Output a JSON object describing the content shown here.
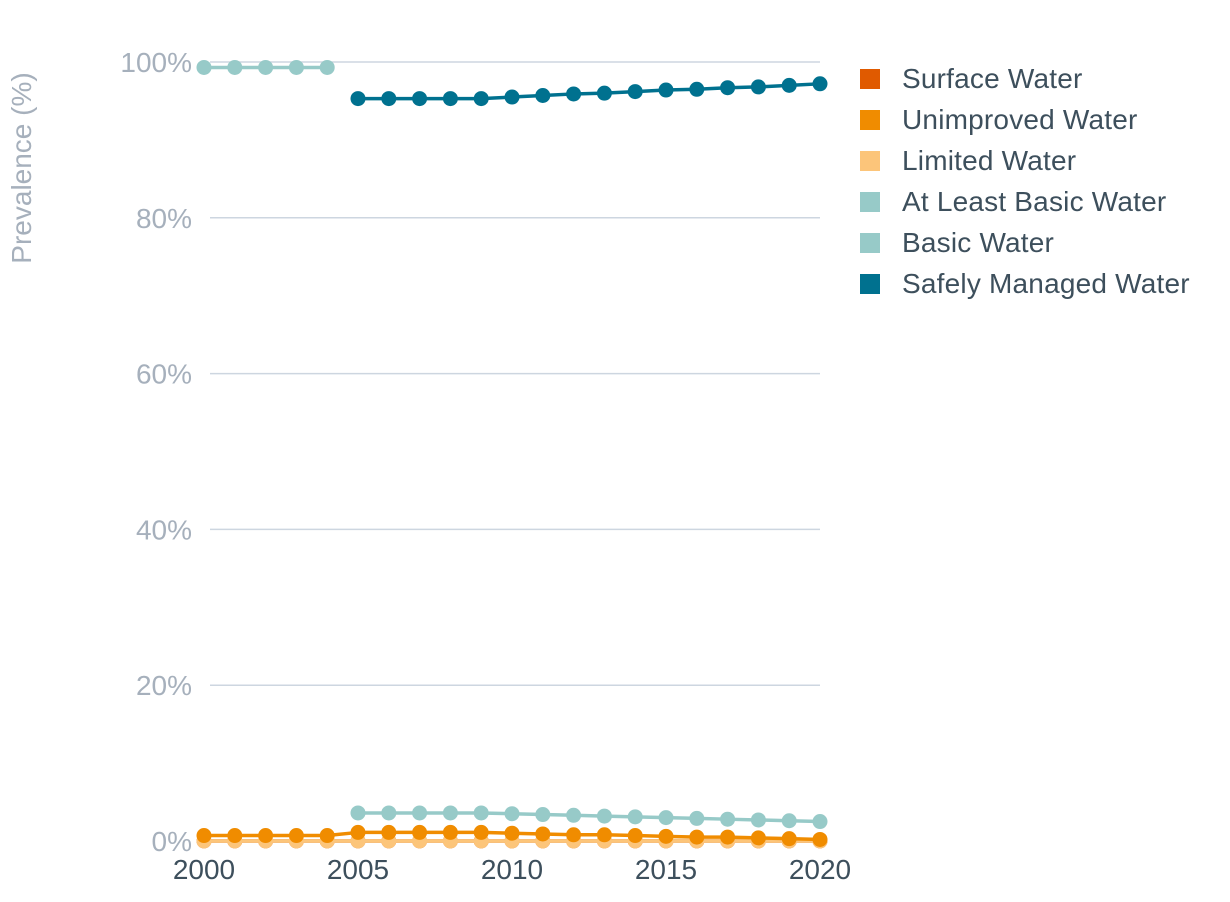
{
  "chart_data": {
    "type": "line",
    "ylabel": "Prevalence (%)",
    "xlabel": "",
    "x": [
      2000,
      2001,
      2002,
      2003,
      2004,
      2005,
      2006,
      2007,
      2008,
      2009,
      2010,
      2011,
      2012,
      2013,
      2014,
      2015,
      2016,
      2017,
      2018,
      2019,
      2020
    ],
    "xlim": [
      2000,
      2020
    ],
    "ylim": [
      0,
      100
    ],
    "x_ticks": [
      "2000",
      "2005",
      "2010",
      "2015",
      "2020"
    ],
    "y_ticks": [
      "0%",
      "20%",
      "40%",
      "60%",
      "80%",
      "100%"
    ],
    "grid": true,
    "legend_position": "right",
    "series": [
      {
        "name": "Surface Water",
        "color": "#e05a00",
        "values": [
          0,
          0,
          0,
          0,
          0,
          0,
          0,
          0,
          0,
          0,
          0,
          0,
          0,
          0,
          0,
          0,
          0,
          0,
          0,
          0,
          0
        ]
      },
      {
        "name": "Unimproved Water",
        "color": "#f08c00",
        "values": [
          0.7,
          0.7,
          0.7,
          0.7,
          0.7,
          1.1,
          1.1,
          1.1,
          1.1,
          1.1,
          1.0,
          0.9,
          0.8,
          0.8,
          0.7,
          0.6,
          0.5,
          0.5,
          0.4,
          0.3,
          0.2
        ]
      },
      {
        "name": "Limited Water",
        "color": "#fcc57a",
        "values": [
          0,
          0,
          0,
          0,
          0,
          0,
          0,
          0,
          0,
          0,
          0,
          0,
          0,
          0,
          0,
          0,
          0,
          0,
          0,
          0,
          0
        ]
      },
      {
        "name": "At Least Basic Water",
        "color": "#97cac8",
        "values": [
          99.3,
          99.3,
          99.3,
          99.3,
          99.3,
          null,
          null,
          null,
          null,
          null,
          null,
          null,
          null,
          null,
          null,
          null,
          null,
          null,
          null,
          null,
          null
        ]
      },
      {
        "name": "Basic Water",
        "color": "#97cac8",
        "values": [
          null,
          null,
          null,
          null,
          null,
          3.6,
          3.6,
          3.6,
          3.6,
          3.6,
          3.5,
          3.4,
          3.3,
          3.2,
          3.1,
          3.0,
          2.9,
          2.8,
          2.7,
          2.6,
          2.5
        ]
      },
      {
        "name": "Safely Managed Water",
        "color": "#00718f",
        "values": [
          null,
          null,
          null,
          null,
          null,
          95.3,
          95.3,
          95.3,
          95.3,
          95.3,
          95.5,
          95.7,
          95.9,
          96.0,
          96.2,
          96.4,
          96.5,
          96.7,
          96.8,
          97.0,
          97.2
        ]
      }
    ]
  }
}
